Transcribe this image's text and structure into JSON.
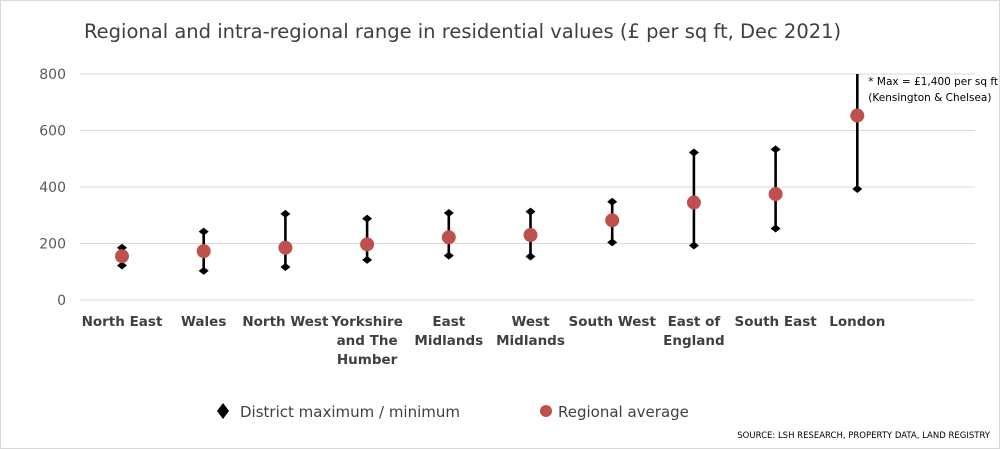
{
  "chart_data": {
    "type": "scatter",
    "title": "Regional and intra-regional range in residential values (£ per sq ft, Dec 2021)",
    "xlabel": "",
    "ylabel": "",
    "ylim": [
      0,
      800
    ],
    "yticks": [
      0,
      200,
      400,
      600,
      800
    ],
    "grid": true,
    "legend_position": "bottom",
    "categories": [
      [
        "North East"
      ],
      [
        "Wales"
      ],
      [
        "North West"
      ],
      [
        "Yorkshire",
        "and The",
        "Humber"
      ],
      [
        "East",
        "Midlands"
      ],
      [
        "West",
        "Midlands"
      ],
      [
        "South West"
      ],
      [
        "East of",
        "England"
      ],
      [
        "South East"
      ],
      [
        "London"
      ]
    ],
    "series": [
      {
        "name": "District maximum / minimum",
        "marker": "diamond",
        "color": "#000000",
        "max": [
          185,
          242,
          305,
          288,
          308,
          313,
          348,
          522,
          533,
          800
        ],
        "min": [
          122,
          103,
          117,
          142,
          157,
          154,
          204,
          193,
          253,
          393
        ]
      },
      {
        "name": "Regional average",
        "marker": "circle",
        "color": "#c0504d",
        "values": [
          155,
          173,
          185,
          197,
          222,
          230,
          282,
          345,
          375,
          653
        ]
      }
    ],
    "annotations": [
      {
        "category_index": 9,
        "lines": [
          "* Max = £1,400 per sq ft",
          "(Kensington & Chelsea)"
        ]
      }
    ],
    "source": "SOURCE: LSH RESEARCH, PROPERTY DATA, LAND REGISTRY"
  }
}
